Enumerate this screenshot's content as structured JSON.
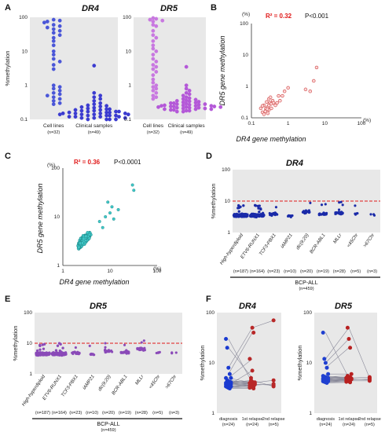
{
  "colors": {
    "panel_bg": "#e8e8e8",
    "cell_line_a": "#4a56d8",
    "clinical_a": "#3b3bd0",
    "dr5_cell": "#c878e0",
    "dr5_clin": "#b458d8",
    "scatter_b_fill": "#ffd8d8",
    "scatter_b_stroke": "#c83a3a",
    "scatter_c_fill": "#40c8c8",
    "scatter_c_stroke": "#1a8080",
    "d_dots": "#1a2aa8",
    "e_dots": "#8a4ab8",
    "cutoff": "#e01818",
    "diag": "#1a3ad0",
    "relapse": "#b82828",
    "dr5_diag": "#2040d0",
    "dr5_relapse": "#b82020"
  },
  "panels": {
    "A": {
      "label": "A"
    },
    "B": {
      "label": "B"
    },
    "C": {
      "label": "C"
    },
    "D": {
      "label": "D"
    },
    "E": {
      "label": "E"
    },
    "F": {
      "label": "F"
    }
  },
  "chart_data": [
    {
      "id": "A-left",
      "type": "scatter",
      "title": "DR4",
      "ylabel": "%methylation",
      "yscale": "log",
      "ylim": [
        0.1,
        100
      ],
      "yticks": [
        "100",
        "10",
        "1",
        "0.1"
      ],
      "categories": [
        "Cell lines",
        "Clinical samples"
      ],
      "n_labels": [
        "(n=32)",
        "(n=49)"
      ],
      "series": [
        {
          "values": [
            85,
            80,
            75,
            70,
            60,
            55,
            50,
            45,
            40,
            35,
            30,
            25,
            20,
            15,
            10,
            8,
            6,
            5,
            4,
            3,
            1.0,
            0.9,
            0.8,
            0.7,
            0.6,
            0.55,
            0.5,
            0.45,
            0.4,
            0.35,
            0.3,
            0.28
          ]
        },
        {
          "values": [
            3.8,
            0.6,
            0.5,
            0.45,
            0.4,
            0.35,
            0.3,
            0.28,
            0.26,
            0.25,
            0.24,
            0.23,
            0.22,
            0.21,
            0.2,
            0.2,
            0.19,
            0.19,
            0.18,
            0.18,
            0.17,
            0.17,
            0.17,
            0.16,
            0.16,
            0.16,
            0.15,
            0.15,
            0.15,
            0.15,
            0.14,
            0.14,
            0.14,
            0.14,
            0.13,
            0.13,
            0.13,
            0.13,
            0.12,
            0.12,
            0.12,
            0.12,
            0.11,
            0.11,
            0.11,
            0.1,
            0.1,
            0.1,
            0.1
          ]
        }
      ]
    },
    {
      "id": "A-right",
      "type": "scatter",
      "title": "DR5",
      "yscale": "log",
      "ylim": [
        0.1,
        100
      ],
      "yticks": [
        "100",
        "10",
        "1",
        "0.1"
      ],
      "categories": [
        "Cell lines",
        "Clinical samples"
      ],
      "n_labels": [
        "(n=32)",
        "(n=49)"
      ],
      "series": [
        {
          "values": [
            95,
            90,
            85,
            80,
            75,
            60,
            55,
            40,
            30,
            25,
            20,
            15,
            12,
            10,
            8,
            6,
            5,
            4,
            3.5,
            3,
            2.5,
            2,
            1.5,
            1.2,
            1.0,
            0.9,
            0.8,
            0.7,
            0.6,
            0.5,
            0.45,
            0.4
          ]
        },
        {
          "values": [
            3.5,
            1.0,
            0.8,
            0.7,
            0.6,
            0.55,
            0.5,
            0.45,
            0.42,
            0.4,
            0.38,
            0.36,
            0.35,
            0.34,
            0.33,
            0.32,
            0.31,
            0.3,
            0.3,
            0.29,
            0.28,
            0.28,
            0.27,
            0.27,
            0.26,
            0.26,
            0.25,
            0.25,
            0.25,
            0.24,
            0.24,
            0.24,
            0.23,
            0.23,
            0.23,
            0.22,
            0.22,
            0.22,
            0.21,
            0.21,
            0.2,
            0.2,
            0.2,
            0.19,
            0.19,
            0.18,
            0.18,
            0.17,
            0.17
          ]
        }
      ]
    },
    {
      "id": "B",
      "type": "scatter",
      "xscale": "log",
      "yscale": "log",
      "xlim": [
        0.1,
        100
      ],
      "ylim": [
        0.1,
        100
      ],
      "xticks": [
        "0.1",
        "1",
        "10",
        "100"
      ],
      "yticks": [
        "100",
        "10",
        "1",
        "0.1"
      ],
      "x_unit": "(%)",
      "y_unit": "(%)",
      "xlabel": "DR4 gene methylation",
      "ylabel": "DR5 gene methylation",
      "r2": "R² = 0.32",
      "p": "P<0.001",
      "points": [
        [
          0.2,
          0.15
        ],
        [
          0.22,
          0.13
        ],
        [
          0.25,
          0.18
        ],
        [
          0.25,
          0.2
        ],
        [
          0.28,
          0.22
        ],
        [
          0.3,
          0.25
        ],
        [
          0.3,
          0.18
        ],
        [
          0.32,
          0.3
        ],
        [
          0.35,
          0.2
        ],
        [
          0.35,
          0.28
        ],
        [
          0.38,
          0.35
        ],
        [
          0.4,
          0.3
        ],
        [
          0.22,
          0.25
        ],
        [
          0.26,
          0.32
        ],
        [
          0.18,
          0.2
        ],
        [
          0.2,
          0.24
        ],
        [
          0.24,
          0.16
        ],
        [
          0.28,
          0.14
        ],
        [
          0.3,
          0.4
        ],
        [
          0.33,
          0.45
        ],
        [
          0.45,
          0.25
        ],
        [
          0.5,
          0.3
        ],
        [
          0.6,
          0.35
        ],
        [
          0.55,
          0.5
        ],
        [
          0.7,
          0.5
        ],
        [
          0.8,
          0.7
        ],
        [
          1.0,
          0.9
        ],
        [
          3.0,
          0.8
        ],
        [
          4.0,
          0.7
        ],
        [
          5.0,
          1.5
        ],
        [
          6.0,
          4.0
        ],
        [
          0.27,
          0.19
        ]
      ]
    },
    {
      "id": "C",
      "type": "scatter",
      "xscale": "log",
      "yscale": "log",
      "xlim": [
        1,
        100
      ],
      "ylim": [
        1,
        100
      ],
      "xticks": [
        "1",
        "10",
        "100"
      ],
      "yticks": [
        "100",
        "10",
        "1"
      ],
      "x_unit": "(%)",
      "y_unit": "(%)",
      "xlabel": "DR4 gene methylation",
      "ylabel": "DR5 gene methylation",
      "r2": "R² = 0.36",
      "p": "P<0.0001"
    },
    {
      "id": "D",
      "type": "scatter",
      "title": "DR4",
      "ylabel": "%methylation",
      "yscale": "log",
      "ylim": [
        1,
        100
      ],
      "yticks": [
        "100",
        "10",
        "1"
      ],
      "cutoff": 10,
      "categories": [
        "High-hyperdiploid",
        "ETV6-RUNX1",
        "TCF3-PBX1",
        "iAMP21",
        "dic(9;20)",
        "BCR-ABL1",
        "MLLr",
        "<45Chr",
        ">67Chr"
      ],
      "n_labels": [
        "(n=187)",
        "(n=164)",
        "(n=23)",
        "(n=10)",
        "(n=20)",
        "(n=19)",
        "(n=28)",
        "(n=5)",
        "(n=3)"
      ],
      "group_label": "BCP-ALL",
      "group_n": "(n=459)"
    },
    {
      "id": "E",
      "type": "scatter",
      "title": "DR5",
      "ylabel": "%methylation",
      "yscale": "log",
      "ylim": [
        1,
        100
      ],
      "yticks": [
        "100",
        "10",
        "1"
      ],
      "cutoff": 10,
      "categories": [
        "High-hyperdiploid",
        "ETV6-RUNX1",
        "TCF3-PBX1",
        "iAMP21",
        "dic(9;20)",
        "BCR-ABL1",
        "MLLr",
        "<45Chr",
        ">67Chr"
      ],
      "n_labels": [
        "(n=187)",
        "(n=164)",
        "(n=23)",
        "(n=10)",
        "(n=20)",
        "(n=19)",
        "(n=28)",
        "(n=5)",
        "(n=3)"
      ],
      "group_label": "BCP-ALL",
      "group_n": "(n=459)"
    },
    {
      "id": "F-left",
      "type": "line",
      "title": "DR4",
      "ylabel": "%methylation",
      "yscale": "log",
      "ylim": [
        1,
        100
      ],
      "yticks": [
        "100",
        "10",
        "1"
      ],
      "categories": [
        "diagnosis",
        "1st relapse",
        "2nd relapse"
      ],
      "n_labels": [
        "(n=24)",
        "(n=24)",
        "(n=5)"
      ]
    },
    {
      "id": "F-right",
      "type": "line",
      "title": "DR5",
      "ylabel": "%methylation",
      "yscale": "log",
      "ylim": [
        1,
        100
      ],
      "yticks": [
        "100",
        "10",
        "1"
      ],
      "categories": [
        "diagnosis",
        "1st relapse",
        "2nd relapse"
      ],
      "n_labels": [
        "(n=24)",
        "(n=24)",
        "(n=5)"
      ]
    }
  ]
}
